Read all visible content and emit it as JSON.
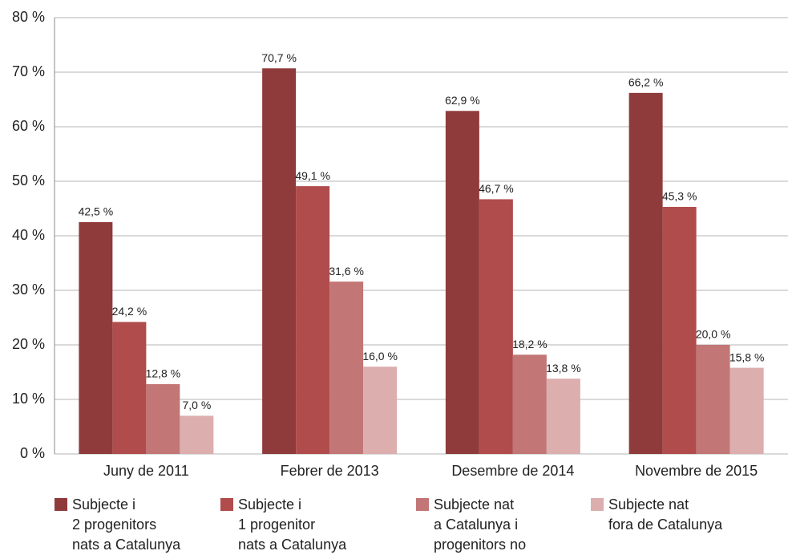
{
  "chart_data": {
    "type": "bar",
    "categories": [
      "Juny de 2011",
      "Febrer de 2013",
      "Desembre de 2014",
      "Novembre de 2015"
    ],
    "series": [
      {
        "name": "Subjecte i\n2 progenitors\nnats a Catalunya",
        "color": "#8f3b3b",
        "values": [
          42.5,
          70.7,
          62.9,
          66.2
        ],
        "value_labels": [
          "42,5 %",
          "70,7 %",
          "62,9 %",
          "66,2 %"
        ]
      },
      {
        "name": "Subjecte i\n1 progenitor\nnats a Catalunya",
        "color": "#b04c4c",
        "values": [
          24.2,
          49.1,
          46.7,
          45.3
        ],
        "value_labels": [
          "24,2 %",
          "49,1 %",
          "46,7 %",
          "45,3 %"
        ]
      },
      {
        "name": "Subjecte nat\na Catalunya i\nprogenitors no",
        "color": "#c27676",
        "values": [
          12.8,
          31.6,
          18.2,
          20.0
        ],
        "value_labels": [
          "12,8 %",
          "31,6 %",
          "18,2 %",
          "20,0 %"
        ]
      },
      {
        "name": "Subjecte nat\nfora de Catalunya",
        "color": "#dcaeae",
        "values": [
          7.0,
          16.0,
          13.8,
          15.8
        ],
        "value_labels": [
          "7,0 %",
          "16,0 %",
          "13,8 %",
          "15,8 %"
        ]
      }
    ],
    "ylim": [
      0,
      80
    ],
    "yticks": [
      {
        "value": 0,
        "label": "0 %"
      },
      {
        "value": 10,
        "label": "10 %"
      },
      {
        "value": 20,
        "label": "20 %"
      },
      {
        "value": 30,
        "label": "30 %"
      },
      {
        "value": 40,
        "label": "40 %"
      },
      {
        "value": 50,
        "label": "50 %"
      },
      {
        "value": 60,
        "label": "60 %"
      },
      {
        "value": 70,
        "label": "70 %"
      },
      {
        "value": 80,
        "label": "80 %"
      }
    ],
    "grid": true,
    "legend": "bottom"
  }
}
